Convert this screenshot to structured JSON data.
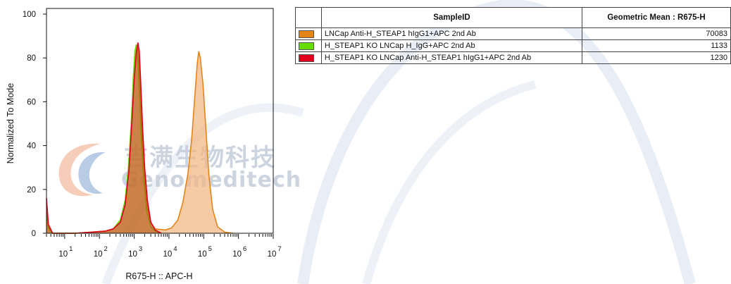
{
  "chart_data": {
    "type": "histogram",
    "xlabel": "R675-H :: APC-H",
    "ylabel": "Normalized To Mode",
    "x_scale": "log",
    "xlim": [
      3,
      10000000
    ],
    "ylim": [
      0,
      100
    ],
    "y_ticks": [
      0,
      20,
      40,
      60,
      80,
      100
    ],
    "x_ticks": [
      {
        "base": "10",
        "exp": "1",
        "value": 10
      },
      {
        "base": "10",
        "exp": "2",
        "value": 100
      },
      {
        "base": "10",
        "exp": "3",
        "value": 1000
      },
      {
        "base": "10",
        "exp": "4",
        "value": 10000
      },
      {
        "base": "10",
        "exp": "5",
        "value": 100000
      },
      {
        "base": "10",
        "exp": "6",
        "value": 1000000
      },
      {
        "base": "10",
        "exp": "7",
        "value": 10000000
      }
    ],
    "series": [
      {
        "name": "H_STEAP1 KO LNCap H_IgG+APC 2nd Ab",
        "color": "#66dd00",
        "points": [
          [
            3,
            8
          ],
          [
            3.4,
            2
          ],
          [
            4.5,
            0
          ],
          [
            20,
            0
          ],
          [
            60,
            0.5
          ],
          [
            150,
            1
          ],
          [
            250,
            2
          ],
          [
            400,
            6
          ],
          [
            550,
            15
          ],
          [
            700,
            32
          ],
          [
            850,
            55
          ],
          [
            950,
            72
          ],
          [
            1050,
            83
          ],
          [
            1150,
            86
          ],
          [
            1250,
            82
          ],
          [
            1400,
            66
          ],
          [
            1600,
            44
          ],
          [
            1900,
            24
          ],
          [
            2300,
            10
          ],
          [
            3000,
            3
          ],
          [
            4000,
            1
          ],
          [
            6000,
            0
          ]
        ]
      },
      {
        "name": "H_STEAP1 KO LNCap Anti-H_STEAP1 hIgG1+APC 2nd Ab",
        "color": "#e0001b",
        "points": [
          [
            3,
            16
          ],
          [
            3.4,
            4
          ],
          [
            4.5,
            0
          ],
          [
            20,
            0
          ],
          [
            60,
            0.5
          ],
          [
            150,
            1
          ],
          [
            250,
            2
          ],
          [
            400,
            5
          ],
          [
            550,
            13
          ],
          [
            700,
            28
          ],
          [
            850,
            50
          ],
          [
            1000,
            70
          ],
          [
            1150,
            82
          ],
          [
            1280,
            87
          ],
          [
            1400,
            83
          ],
          [
            1550,
            68
          ],
          [
            1750,
            48
          ],
          [
            2000,
            30
          ],
          [
            2400,
            15
          ],
          [
            3000,
            5
          ],
          [
            4000,
            1.5
          ],
          [
            6000,
            0
          ]
        ]
      },
      {
        "name": "LNCap Anti-H_STEAP1 hIgG1+APC 2nd Ab",
        "color": "#e58518",
        "fill": "#f1b885",
        "points": [
          [
            3,
            14
          ],
          [
            3.4,
            3
          ],
          [
            4.5,
            0
          ],
          [
            20,
            0
          ],
          [
            60,
            0.5
          ],
          [
            150,
            1
          ],
          [
            250,
            2
          ],
          [
            400,
            6
          ],
          [
            550,
            15
          ],
          [
            700,
            30
          ],
          [
            850,
            53
          ],
          [
            950,
            70
          ],
          [
            1050,
            80
          ],
          [
            1150,
            86
          ],
          [
            1280,
            84
          ],
          [
            1400,
            72
          ],
          [
            1600,
            52
          ],
          [
            1900,
            28
          ],
          [
            2300,
            13
          ],
          [
            3000,
            5
          ],
          [
            4000,
            2
          ],
          [
            8000,
            1.5
          ],
          [
            12000,
            2.5
          ],
          [
            18000,
            6
          ],
          [
            25000,
            14
          ],
          [
            35000,
            27
          ],
          [
            45000,
            43
          ],
          [
            55000,
            62
          ],
          [
            65000,
            77
          ],
          [
            72000,
            83
          ],
          [
            80000,
            80
          ],
          [
            95000,
            68
          ],
          [
            115000,
            48
          ],
          [
            140000,
            27
          ],
          [
            180000,
            11
          ],
          [
            250000,
            3
          ],
          [
            400000,
            0.5
          ],
          [
            700000,
            0
          ]
        ]
      }
    ]
  },
  "table": {
    "headers": [
      "SampleID",
      "Geometric Mean : R675-H"
    ],
    "rows": [
      {
        "color": "#e58518",
        "sample": "LNCap Anti-H_STEAP1 hIgG1+APC 2nd Ab",
        "value": "70083"
      },
      {
        "color": "#66dd00",
        "sample": "H_STEAP1 KO LNCap H_IgG+APC 2nd Ab",
        "value": "1133"
      },
      {
        "color": "#e0001b",
        "sample": "H_STEAP1 KO LNCap Anti-H_STEAP1 hIgG1+APC 2nd Ab",
        "value": "1230"
      }
    ]
  },
  "watermark": {
    "text_cn": "吉满生物科技",
    "text_en": "Genomeditech",
    "color": "#c4cdda"
  }
}
